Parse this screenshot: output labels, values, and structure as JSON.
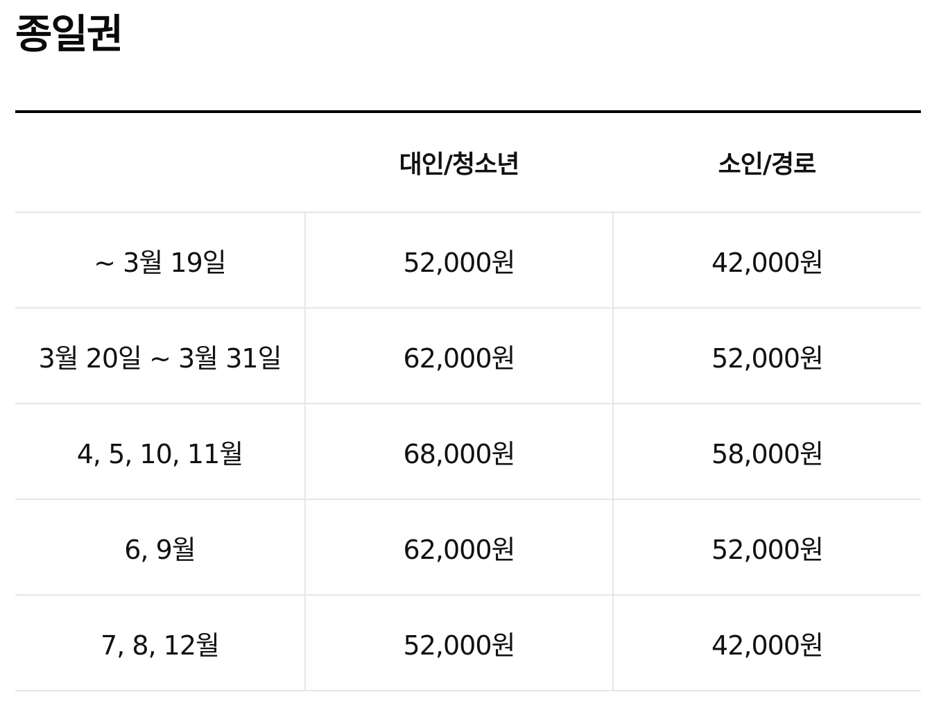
{
  "page": {
    "title": "종일권"
  },
  "table": {
    "headers": [
      "",
      "대인/청소년",
      "소인/경로"
    ],
    "rows": [
      {
        "period": "~ 3월 19일",
        "adult_youth": "52,000원",
        "child_senior": "42,000원"
      },
      {
        "period": "3월 20일 ~ 3월 31일",
        "adult_youth": "62,000원",
        "child_senior": "52,000원"
      },
      {
        "period": "4, 5, 10, 11월",
        "adult_youth": "68,000원",
        "child_senior": "58,000원"
      },
      {
        "period": "6, 9월",
        "adult_youth": "62,000원",
        "child_senior": "52,000원"
      },
      {
        "period": "7, 8, 12월",
        "adult_youth": "52,000원",
        "child_senior": "42,000원"
      }
    ]
  },
  "colors": {
    "text": "#111111",
    "header_rule": "#000000",
    "grid_line": "#e6e6e6",
    "background": "#ffffff"
  }
}
